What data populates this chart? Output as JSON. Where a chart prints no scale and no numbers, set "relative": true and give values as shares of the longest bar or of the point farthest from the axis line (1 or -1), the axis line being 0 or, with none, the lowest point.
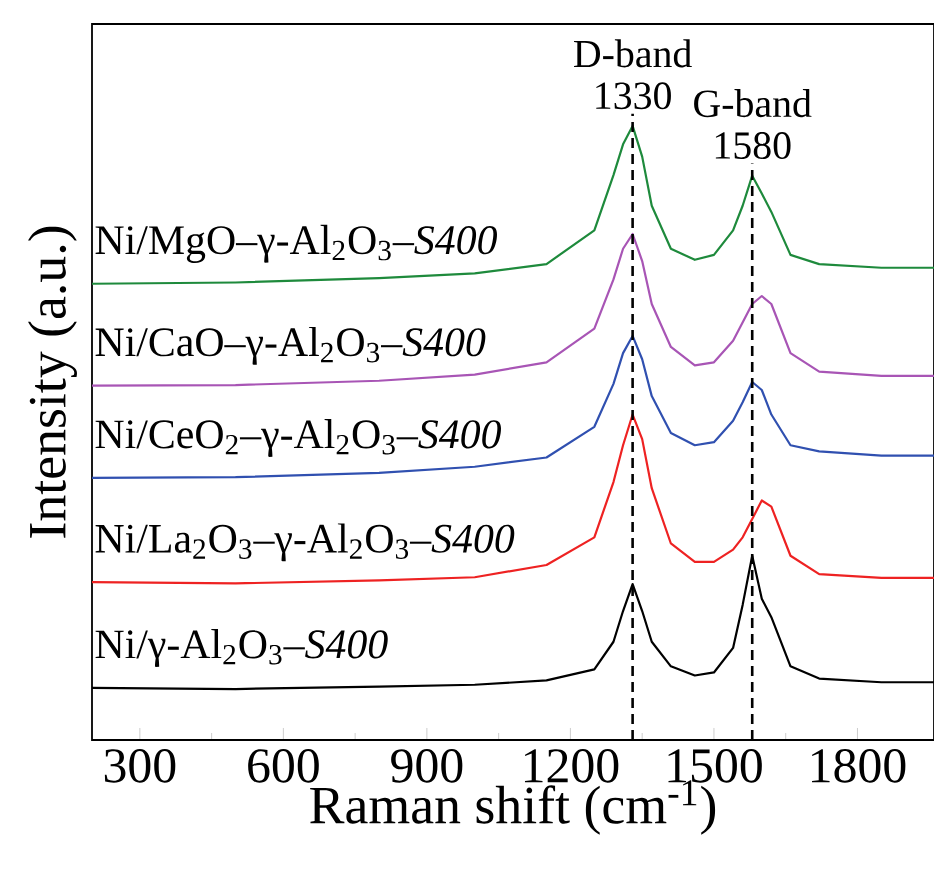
{
  "chart_data": {
    "type": "line",
    "relative": true,
    "xlabel": "Raman shift (cm$^{-1}$)",
    "ylabel": "Intensity (a.u.)",
    "xlim": [
      200,
      1960
    ],
    "xticks": [
      300,
      600,
      900,
      1200,
      1500,
      1800
    ],
    "tick_labels": "x",
    "grid": false,
    "legend": false,
    "marker": "none",
    "line_style": "solid",
    "x": [
      200,
      500,
      800,
      1000,
      1150,
      1250,
      1290,
      1310,
      1330,
      1350,
      1370,
      1410,
      1460,
      1500,
      1540,
      1560,
      1580,
      1600,
      1620,
      1660,
      1720,
      1850,
      1960
    ],
    "series": [
      {
        "name": "Ni/γ-Al$_{2}$O$_{3}$–*S400*",
        "color": "#000000",
        "values": [
          0.085,
          0.083,
          0.087,
          0.09,
          0.097,
          0.115,
          0.16,
          0.21,
          0.254,
          0.21,
          0.16,
          0.12,
          0.105,
          0.11,
          0.15,
          0.22,
          0.3,
          0.23,
          0.2,
          0.12,
          0.1,
          0.094,
          0.094
        ]
      },
      {
        "name": "Ni/La$_{2}$O$_{3}$–γ-Al$_{2}$O$_{3}$–*S400*",
        "color": "#ee2222",
        "values": [
          0.257,
          0.255,
          0.26,
          0.265,
          0.285,
          0.33,
          0.42,
          0.48,
          0.53,
          0.49,
          0.41,
          0.32,
          0.29,
          0.29,
          0.31,
          0.33,
          0.36,
          0.39,
          0.38,
          0.3,
          0.27,
          0.264,
          0.264
        ]
      },
      {
        "name": "Ni/CeO$_{2}$–γ-Al$_{2}$O$_{3}$–*S400*",
        "color": "#3050b0",
        "values": [
          0.427,
          0.428,
          0.435,
          0.445,
          0.46,
          0.51,
          0.58,
          0.63,
          0.658,
          0.62,
          0.56,
          0.5,
          0.48,
          0.485,
          0.52,
          0.55,
          0.583,
          0.57,
          0.53,
          0.48,
          0.47,
          0.463,
          0.463
        ]
      },
      {
        "name": "Ni/CaO–γ-Al$_{2}$O$_{3}$–*S400*",
        "color": "#a855b5",
        "values": [
          0.577,
          0.578,
          0.585,
          0.595,
          0.615,
          0.67,
          0.75,
          0.8,
          0.824,
          0.78,
          0.71,
          0.64,
          0.61,
          0.615,
          0.65,
          0.68,
          0.71,
          0.723,
          0.71,
          0.63,
          0.6,
          0.593,
          0.593
        ]
      },
      {
        "name": "Ni/MgO–γ-Al$_{2}$O$_{3}$–*S400*",
        "color": "#1e8a3c",
        "values": [
          0.743,
          0.745,
          0.752,
          0.76,
          0.775,
          0.83,
          0.92,
          0.97,
          1.0,
          0.95,
          0.87,
          0.8,
          0.782,
          0.79,
          0.83,
          0.87,
          0.919,
          0.89,
          0.86,
          0.79,
          0.775,
          0.769,
          0.769
        ]
      }
    ],
    "ref_lines": [
      {
        "axis": "x",
        "value": 1330,
        "label": "D-band 1330",
        "line_style": "dashed"
      },
      {
        "axis": "x",
        "value": 1580,
        "label": "G-band 1580",
        "line_style": "dashed"
      }
    ]
  }
}
